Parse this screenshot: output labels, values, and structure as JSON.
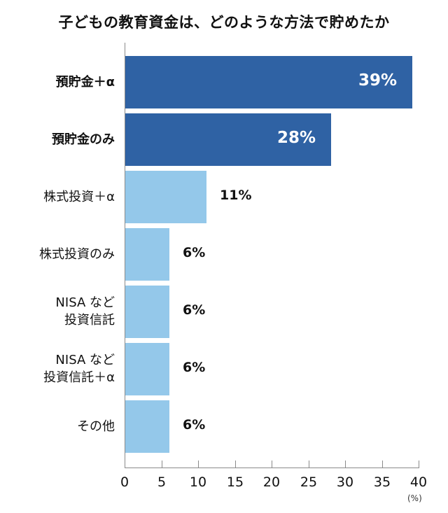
{
  "title": "子どもの教育資金は、どのような方法で貯めたか",
  "unit_label": "(%)",
  "colors": {
    "highlight": "#2f62a4",
    "normal": "#94c8ea",
    "axis": "#8a8a8a"
  },
  "ticks": [
    "0",
    "5",
    "10",
    "15",
    "20",
    "25",
    "30",
    "35",
    "40"
  ],
  "bars": [
    {
      "line1": "預貯金＋α",
      "line2": "",
      "value_label": "39%",
      "value": 39,
      "style": "dark"
    },
    {
      "line1": "預貯金のみ",
      "line2": "",
      "value_label": "28%",
      "value": 28,
      "style": "dark"
    },
    {
      "line1": "株式投資＋α",
      "line2": "",
      "value_label": "11%",
      "value": 11,
      "style": "light"
    },
    {
      "line1": "株式投資のみ",
      "line2": "",
      "value_label": "6%",
      "value": 6,
      "style": "light"
    },
    {
      "line1": "NISA など",
      "line2": "投資信託",
      "value_label": "6%",
      "value": 6,
      "style": "light"
    },
    {
      "line1": "NISA など",
      "line2": "投資信託＋α",
      "value_label": "6%",
      "value": 6,
      "style": "light"
    },
    {
      "line1": "その他",
      "line2": "",
      "value_label": "6%",
      "value": 6,
      "style": "light"
    }
  ],
  "chart_data": {
    "type": "bar",
    "orientation": "horizontal",
    "title": "子どもの教育資金は、どのような方法で貯めたか",
    "categories": [
      "預貯金＋α",
      "預貯金のみ",
      "株式投資＋α",
      "株式投資のみ",
      "NISAなど投資信託",
      "NISAなど投資信託＋α",
      "その他"
    ],
    "values": [
      39,
      28,
      11,
      6,
      6,
      6,
      6
    ],
    "value_labels": [
      "39%",
      "28%",
      "11%",
      "6%",
      "6%",
      "6%",
      "6%"
    ],
    "xlabel": "(%)",
    "ylabel": "",
    "xlim": [
      0,
      40
    ],
    "xticks": [
      0,
      5,
      10,
      15,
      20,
      25,
      30,
      35,
      40
    ],
    "grid": false,
    "legend": null,
    "highlighted_categories": [
      "預貯金＋α",
      "預貯金のみ"
    ]
  }
}
